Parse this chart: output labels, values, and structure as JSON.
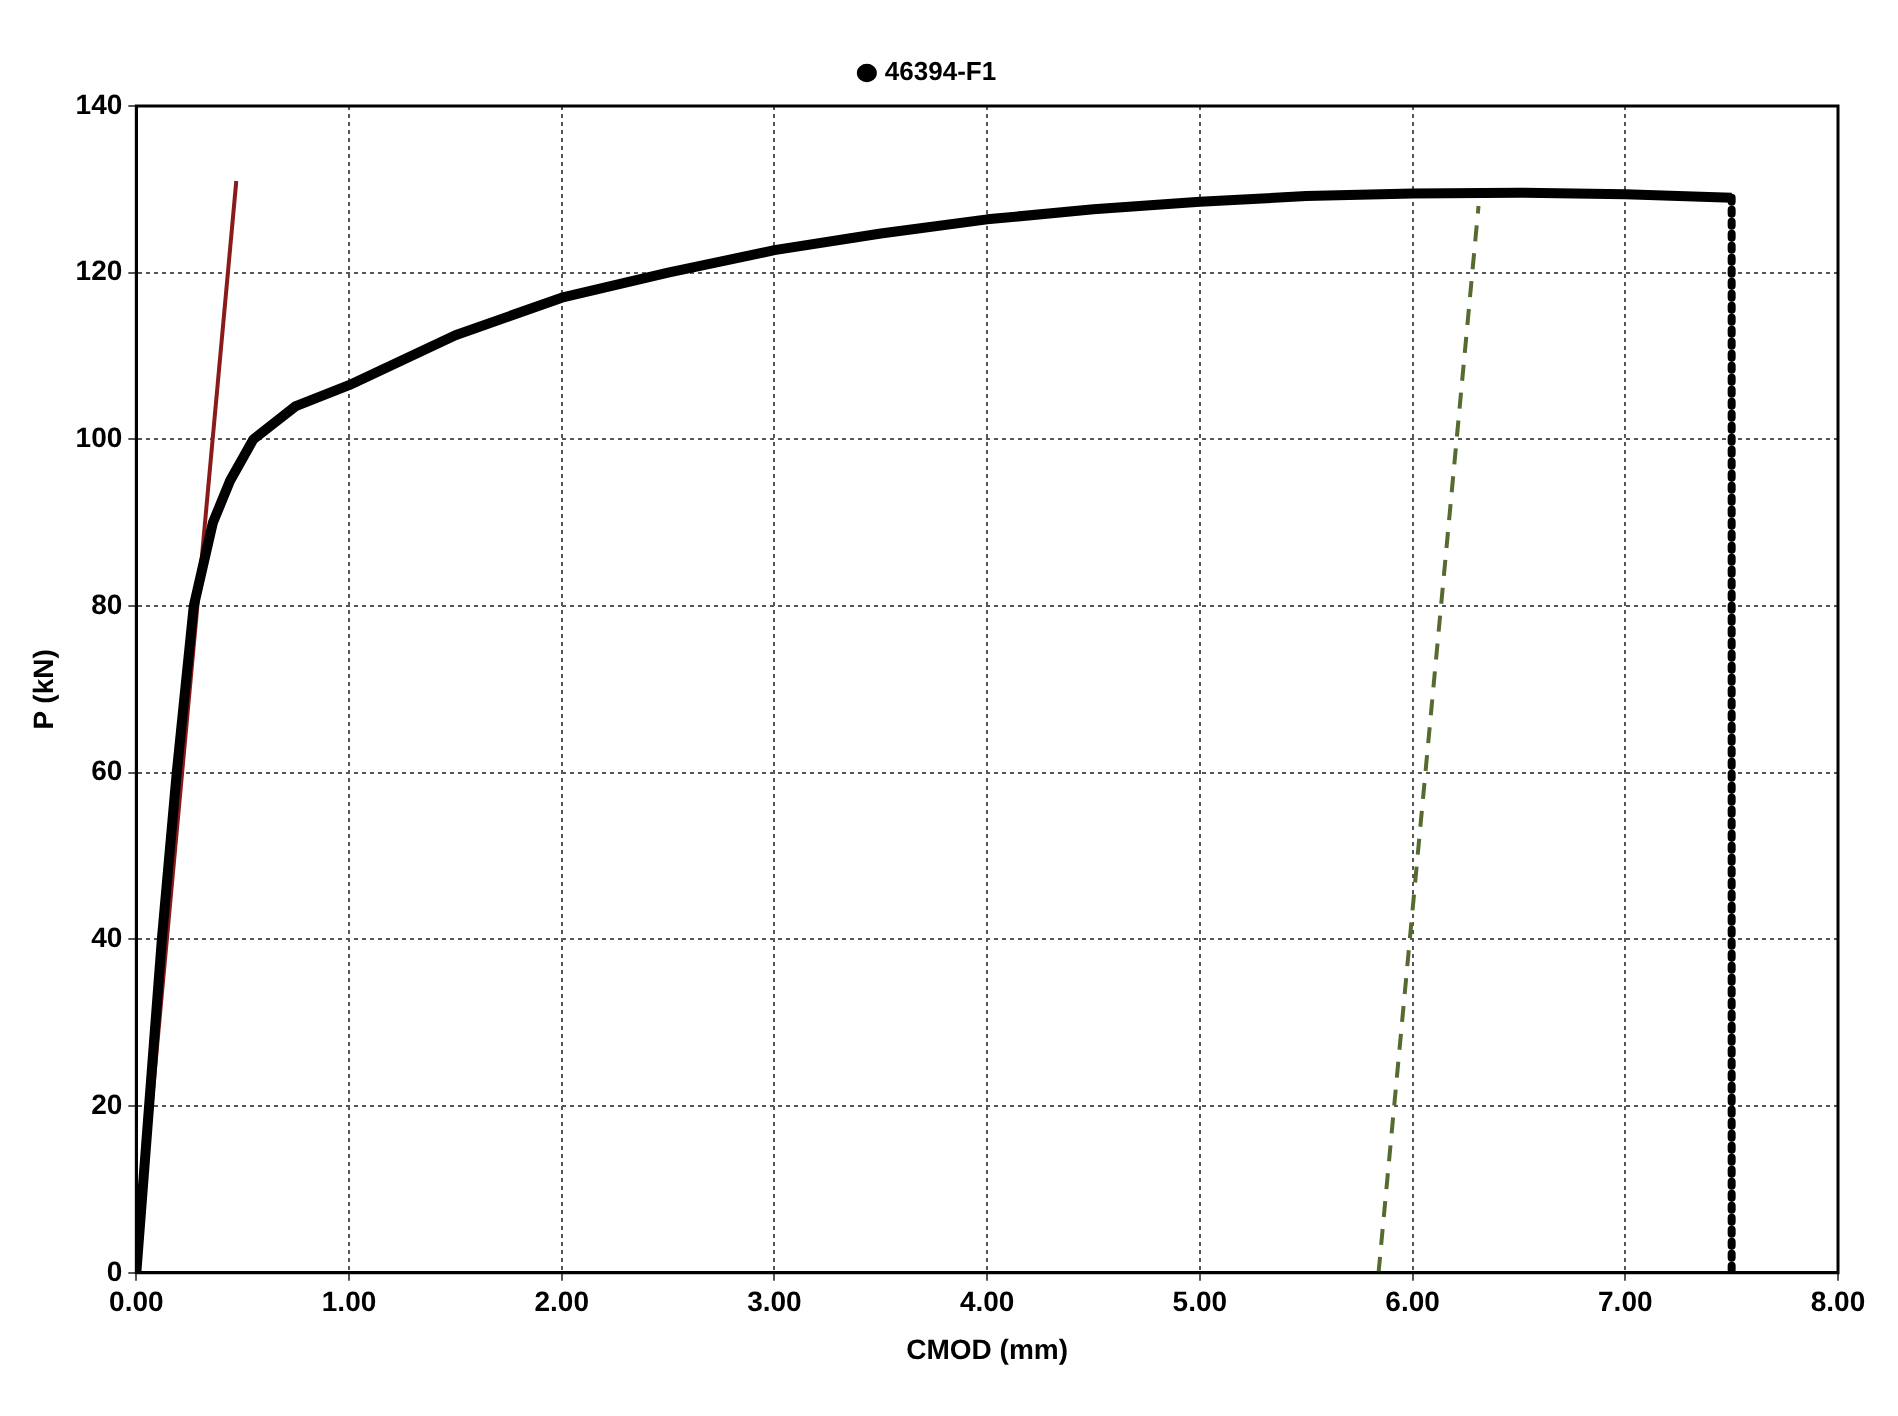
{
  "chart_data": {
    "type": "line",
    "xlabel": "CMOD (mm)",
    "ylabel": "P (kN)",
    "xlim": [
      0,
      8
    ],
    "ylim": [
      0,
      140
    ],
    "xticks": [
      {
        "value": 0,
        "label": "0.00"
      },
      {
        "value": 1,
        "label": "1.00"
      },
      {
        "value": 2,
        "label": "2.00"
      },
      {
        "value": 3,
        "label": "3.00"
      },
      {
        "value": 4,
        "label": "4.00"
      },
      {
        "value": 5,
        "label": "5.00"
      },
      {
        "value": 6,
        "label": "6.00"
      },
      {
        "value": 7,
        "label": "7.00"
      },
      {
        "value": 8,
        "label": "8.00"
      }
    ],
    "yticks": [
      0,
      20,
      40,
      60,
      80,
      100,
      120,
      140
    ],
    "grid": true,
    "legend": "top",
    "marker": "none",
    "series": [
      {
        "name": "46394-F1",
        "color": "#000000",
        "x": [
          0,
          0.06,
          0.12,
          0.19,
          0.27,
          0.36,
          0.44,
          0.55,
          0.75,
          1.0,
          1.5,
          2.0,
          2.5,
          3.0,
          3.5,
          4.0,
          4.5,
          5.0,
          5.5,
          6.0,
          6.5,
          7.0,
          7.5
        ],
        "values": [
          0,
          20,
          40,
          60,
          80,
          90,
          95,
          100,
          104,
          106.5,
          112.5,
          117,
          120,
          122.7,
          124.7,
          126.4,
          127.6,
          128.5,
          129.2,
          129.5,
          129.6,
          129.4,
          129
        ]
      },
      {
        "color": "#000000",
        "line_style": "dotted",
        "x": [
          7.5,
          7.5
        ],
        "values": [
          129,
          0
        ]
      },
      {
        "color": "#8b1a1a",
        "x": [
          0,
          0.47
        ],
        "values": [
          0,
          131
        ]
      },
      {
        "color": "#556b2f",
        "line_style": "dashed",
        "x": [
          5.84,
          6.31
        ],
        "values": [
          0,
          128
        ]
      }
    ]
  }
}
